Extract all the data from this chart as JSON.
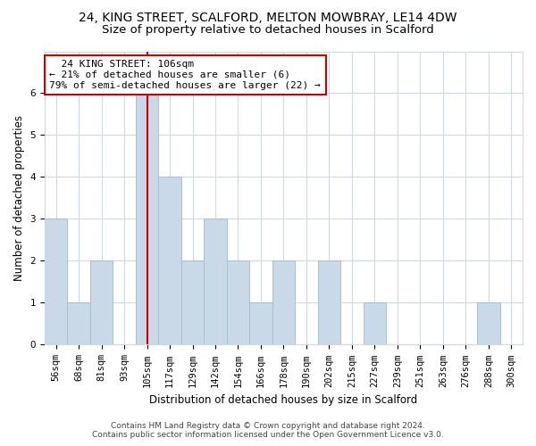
{
  "title1": "24, KING STREET, SCALFORD, MELTON MOWBRAY, LE14 4DW",
  "title2": "Size of property relative to detached houses in Scalford",
  "xlabel": "Distribution of detached houses by size in Scalford",
  "ylabel": "Number of detached properties",
  "footnote": "Contains HM Land Registry data © Crown copyright and database right 2024.\nContains public sector information licensed under the Open Government Licence v3.0.",
  "categories": [
    "56sqm",
    "68sqm",
    "81sqm",
    "93sqm",
    "105sqm",
    "117sqm",
    "129sqm",
    "142sqm",
    "154sqm",
    "166sqm",
    "178sqm",
    "190sqm",
    "202sqm",
    "215sqm",
    "227sqm",
    "239sqm",
    "251sqm",
    "263sqm",
    "276sqm",
    "288sqm",
    "300sqm"
  ],
  "values": [
    3,
    1,
    2,
    0,
    6,
    4,
    2,
    3,
    2,
    1,
    2,
    0,
    2,
    0,
    1,
    0,
    0,
    0,
    0,
    1,
    0
  ],
  "bar_color": "#c9d9e8",
  "bar_edge_color": "#a8bfcc",
  "highlight_index": 4,
  "highlight_line_color": "#cc0000",
  "annotation_line1": "  24 KING STREET: 106sqm",
  "annotation_line2": "← 21% of detached houses are smaller (6)",
  "annotation_line3": "79% of semi-detached houses are larger (22) →",
  "annotation_box_color": "#cc0000",
  "ylim": [
    0,
    7
  ],
  "yticks": [
    0,
    1,
    2,
    3,
    4,
    5,
    6
  ],
  "grid_color": "#d0d8e0",
  "background_color": "#ffffff",
  "title1_fontsize": 10,
  "title2_fontsize": 9.5,
  "axis_label_fontsize": 8.5,
  "tick_fontsize": 7.5,
  "annotation_fontsize": 8,
  "footnote_fontsize": 6.5
}
